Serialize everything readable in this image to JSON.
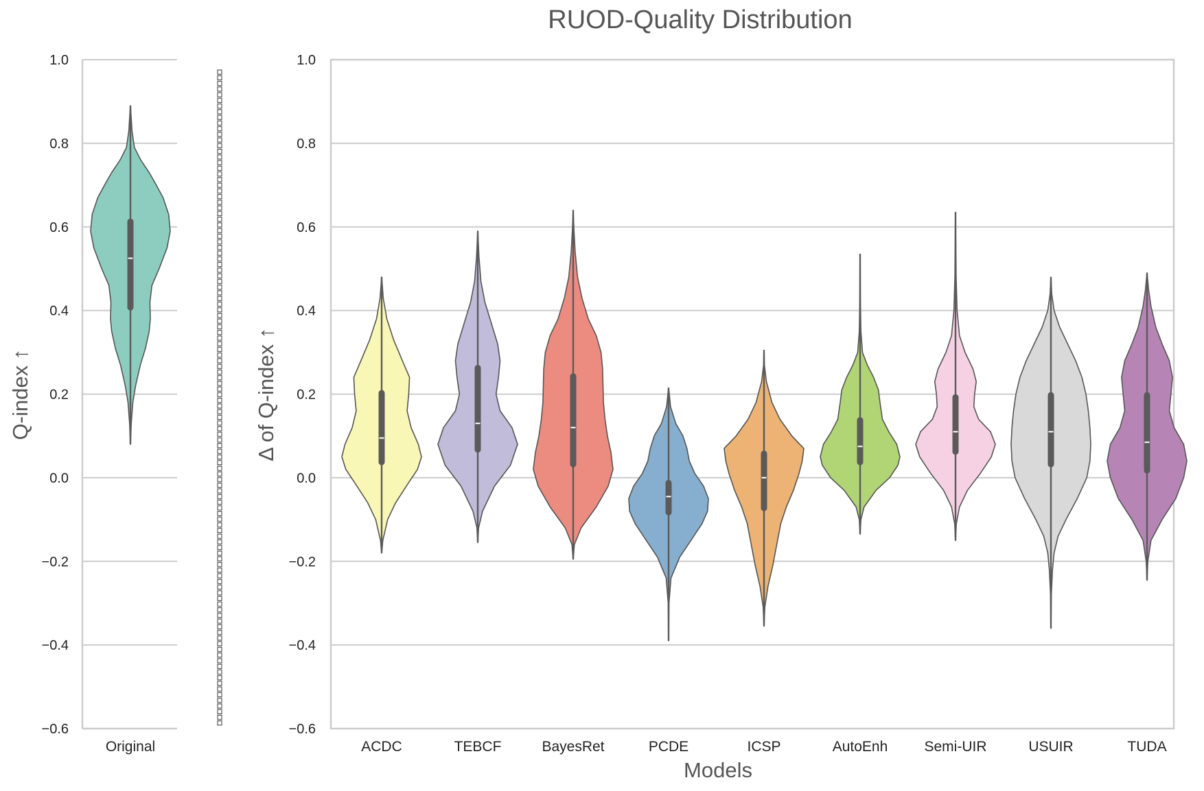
{
  "chart_data": [
    {
      "type": "violin",
      "panel": "left",
      "title": "RUOD-Quality Distribution",
      "ylabel": "Q-index ↑",
      "xlabel": "",
      "ylim": [
        -0.6,
        1.0
      ],
      "yticks": [
        "1.0",
        "0.8",
        "0.6",
        "0.4",
        "0.2",
        "0.0",
        "−0.2",
        "−0.4",
        "−0.6"
      ],
      "grid": "horizontal",
      "categories": [
        "Original"
      ],
      "series": [
        {
          "category": "Original",
          "color": "#8dcdc0",
          "min": 0.08,
          "q1": 0.4,
          "median": 0.525,
          "q3": 0.62,
          "max": 0.89,
          "density": [
            [
              0.08,
              0.002
            ],
            [
              0.13,
              0.02
            ],
            [
              0.18,
              0.06
            ],
            [
              0.22,
              0.13
            ],
            [
              0.27,
              0.25
            ],
            [
              0.31,
              0.38
            ],
            [
              0.35,
              0.47
            ],
            [
              0.38,
              0.5
            ],
            [
              0.42,
              0.49
            ],
            [
              0.46,
              0.54
            ],
            [
              0.5,
              0.72
            ],
            [
              0.55,
              0.92
            ],
            [
              0.59,
              1.0
            ],
            [
              0.63,
              0.96
            ],
            [
              0.67,
              0.82
            ],
            [
              0.7,
              0.65
            ],
            [
              0.73,
              0.47
            ],
            [
              0.76,
              0.26
            ],
            [
              0.79,
              0.1
            ],
            [
              0.83,
              0.04
            ],
            [
              0.86,
              0.02
            ],
            [
              0.89,
              0.002
            ]
          ]
        }
      ]
    },
    {
      "type": "violin",
      "panel": "right",
      "title": "",
      "ylabel": "Δ of Q-index ↑",
      "xlabel": "Models",
      "ylim": [
        -0.6,
        1.0
      ],
      "yticks": [
        "1.0",
        "0.8",
        "0.6",
        "0.4",
        "0.2",
        "0.0",
        "−0.2",
        "−0.4",
        "−0.6"
      ],
      "grid": "horizontal",
      "categories": [
        "ACDC",
        "TEBCF",
        "BayesRet",
        "PCDE",
        "ICSP",
        "AutoEnh",
        "Semi-UIR",
        "USUIR",
        "TUDA"
      ],
      "series": [
        {
          "category": "ACDC",
          "color": "#f9f7b5",
          "min": -0.18,
          "q1": 0.03,
          "median": 0.095,
          "q3": 0.21,
          "max": 0.48,
          "density": [
            [
              -0.18,
              0.002
            ],
            [
              -0.15,
              0.03
            ],
            [
              -0.1,
              0.15
            ],
            [
              -0.06,
              0.35
            ],
            [
              -0.02,
              0.62
            ],
            [
              0.02,
              0.9
            ],
            [
              0.05,
              1.0
            ],
            [
              0.08,
              0.92
            ],
            [
              0.12,
              0.74
            ],
            [
              0.16,
              0.64
            ],
            [
              0.2,
              0.68
            ],
            [
              0.24,
              0.7
            ],
            [
              0.28,
              0.52
            ],
            [
              0.33,
              0.3
            ],
            [
              0.38,
              0.13
            ],
            [
              0.43,
              0.04
            ],
            [
              0.48,
              0.002
            ]
          ]
        },
        {
          "category": "TEBCF",
          "color": "#c0bcd9",
          "min": -0.155,
          "q1": 0.06,
          "median": 0.13,
          "q3": 0.27,
          "max": 0.59,
          "density": [
            [
              -0.155,
              0.002
            ],
            [
              -0.12,
              0.02
            ],
            [
              -0.08,
              0.12
            ],
            [
              -0.02,
              0.42
            ],
            [
              0.03,
              0.82
            ],
            [
              0.08,
              1.0
            ],
            [
              0.12,
              0.86
            ],
            [
              0.16,
              0.56
            ],
            [
              0.2,
              0.46
            ],
            [
              0.24,
              0.52
            ],
            [
              0.28,
              0.56
            ],
            [
              0.32,
              0.5
            ],
            [
              0.37,
              0.34
            ],
            [
              0.42,
              0.18
            ],
            [
              0.47,
              0.08
            ],
            [
              0.53,
              0.03
            ],
            [
              0.59,
              0.002
            ]
          ]
        },
        {
          "category": "BayesRet",
          "color": "#ec8b80",
          "min": -0.195,
          "q1": 0.025,
          "median": 0.12,
          "q3": 0.25,
          "max": 0.64,
          "density": [
            [
              -0.195,
              0.002
            ],
            [
              -0.16,
              0.03
            ],
            [
              -0.12,
              0.2
            ],
            [
              -0.07,
              0.58
            ],
            [
              -0.02,
              0.88
            ],
            [
              0.02,
              1.0
            ],
            [
              0.06,
              0.95
            ],
            [
              0.1,
              0.86
            ],
            [
              0.14,
              0.8
            ],
            [
              0.18,
              0.76
            ],
            [
              0.22,
              0.75
            ],
            [
              0.26,
              0.74
            ],
            [
              0.3,
              0.7
            ],
            [
              0.34,
              0.58
            ],
            [
              0.38,
              0.38
            ],
            [
              0.43,
              0.22
            ],
            [
              0.48,
              0.11
            ],
            [
              0.54,
              0.05
            ],
            [
              0.59,
              0.02
            ],
            [
              0.64,
              0.002
            ]
          ]
        },
        {
          "category": "PCDE",
          "color": "#86aece",
          "min": -0.39,
          "q1": -0.09,
          "median": -0.045,
          "q3": -0.005,
          "max": 0.215,
          "density": [
            [
              -0.39,
              0.002
            ],
            [
              -0.3,
              0.01
            ],
            [
              -0.24,
              0.06
            ],
            [
              -0.19,
              0.28
            ],
            [
              -0.15,
              0.56
            ],
            [
              -0.11,
              0.84
            ],
            [
              -0.08,
              0.98
            ],
            [
              -0.05,
              1.0
            ],
            [
              -0.02,
              0.88
            ],
            [
              0.01,
              0.66
            ],
            [
              0.04,
              0.52
            ],
            [
              0.07,
              0.46
            ],
            [
              0.1,
              0.36
            ],
            [
              0.13,
              0.18
            ],
            [
              0.17,
              0.05
            ],
            [
              0.215,
              0.002
            ]
          ]
        },
        {
          "category": "ICSP",
          "color": "#ecb374",
          "min": -0.355,
          "q1": -0.08,
          "median": 0.0,
          "q3": 0.065,
          "max": 0.305,
          "density": [
            [
              -0.355,
              0.002
            ],
            [
              -0.31,
              0.02
            ],
            [
              -0.26,
              0.1
            ],
            [
              -0.21,
              0.22
            ],
            [
              -0.16,
              0.32
            ],
            [
              -0.11,
              0.42
            ],
            [
              -0.07,
              0.56
            ],
            [
              -0.03,
              0.74
            ],
            [
              0.01,
              0.88
            ],
            [
              0.04,
              0.96
            ],
            [
              0.07,
              1.0
            ],
            [
              0.1,
              0.7
            ],
            [
              0.14,
              0.4
            ],
            [
              0.18,
              0.2
            ],
            [
              0.23,
              0.06
            ],
            [
              0.27,
              0.01
            ],
            [
              0.305,
              0.002
            ]
          ]
        },
        {
          "category": "AutoEnh",
          "color": "#b1d475",
          "min": -0.135,
          "q1": 0.03,
          "median": 0.075,
          "q3": 0.145,
          "max": 0.535,
          "density": [
            [
              -0.135,
              0.002
            ],
            [
              -0.1,
              0.02
            ],
            [
              -0.07,
              0.1
            ],
            [
              -0.03,
              0.4
            ],
            [
              0.0,
              0.74
            ],
            [
              0.03,
              0.95
            ],
            [
              0.05,
              1.0
            ],
            [
              0.08,
              0.92
            ],
            [
              0.11,
              0.72
            ],
            [
              0.14,
              0.56
            ],
            [
              0.18,
              0.5
            ],
            [
              0.21,
              0.46
            ],
            [
              0.24,
              0.34
            ],
            [
              0.27,
              0.18
            ],
            [
              0.3,
              0.06
            ],
            [
              0.35,
              0.02
            ],
            [
              0.42,
              0.008
            ],
            [
              0.535,
              0.002
            ]
          ]
        },
        {
          "category": "Semi-UIR",
          "color": "#f5d1e3",
          "min": -0.15,
          "q1": 0.055,
          "median": 0.11,
          "q3": 0.2,
          "max": 0.635,
          "density": [
            [
              -0.15,
              0.002
            ],
            [
              -0.11,
              0.02
            ],
            [
              -0.07,
              0.1
            ],
            [
              -0.03,
              0.3
            ],
            [
              0.01,
              0.62
            ],
            [
              0.05,
              0.9
            ],
            [
              0.08,
              1.0
            ],
            [
              0.11,
              0.88
            ],
            [
              0.14,
              0.58
            ],
            [
              0.17,
              0.46
            ],
            [
              0.2,
              0.48
            ],
            [
              0.23,
              0.52
            ],
            [
              0.26,
              0.44
            ],
            [
              0.3,
              0.24
            ],
            [
              0.34,
              0.1
            ],
            [
              0.4,
              0.04
            ],
            [
              0.48,
              0.015
            ],
            [
              0.56,
              0.008
            ],
            [
              0.635,
              0.002
            ]
          ]
        },
        {
          "category": "USUIR",
          "color": "#d9d9d9",
          "min": -0.36,
          "q1": 0.025,
          "median": 0.11,
          "q3": 0.205,
          "max": 0.48,
          "density": [
            [
              -0.36,
              0.002
            ],
            [
              -0.28,
              0.01
            ],
            [
              -0.22,
              0.04
            ],
            [
              -0.18,
              0.08
            ],
            [
              -0.14,
              0.18
            ],
            [
              -0.1,
              0.38
            ],
            [
              -0.05,
              0.66
            ],
            [
              0.0,
              0.9
            ],
            [
              0.04,
              0.98
            ],
            [
              0.08,
              1.0
            ],
            [
              0.12,
              0.98
            ],
            [
              0.16,
              0.94
            ],
            [
              0.2,
              0.88
            ],
            [
              0.24,
              0.78
            ],
            [
              0.28,
              0.62
            ],
            [
              0.32,
              0.42
            ],
            [
              0.36,
              0.22
            ],
            [
              0.4,
              0.08
            ],
            [
              0.44,
              0.02
            ],
            [
              0.48,
              0.002
            ]
          ]
        },
        {
          "category": "TUDA",
          "color": "#b685b6",
          "min": -0.245,
          "q1": 0.01,
          "median": 0.085,
          "q3": 0.205,
          "max": 0.49,
          "density": [
            [
              -0.245,
              0.002
            ],
            [
              -0.2,
              0.02
            ],
            [
              -0.15,
              0.1
            ],
            [
              -0.1,
              0.38
            ],
            [
              -0.05,
              0.72
            ],
            [
              0.0,
              0.92
            ],
            [
              0.04,
              1.0
            ],
            [
              0.08,
              0.92
            ],
            [
              0.12,
              0.68
            ],
            [
              0.16,
              0.56
            ],
            [
              0.2,
              0.6
            ],
            [
              0.24,
              0.64
            ],
            [
              0.28,
              0.56
            ],
            [
              0.32,
              0.38
            ],
            [
              0.36,
              0.22
            ],
            [
              0.41,
              0.1
            ],
            [
              0.45,
              0.04
            ],
            [
              0.49,
              0.002
            ]
          ]
        }
      ]
    }
  ]
}
